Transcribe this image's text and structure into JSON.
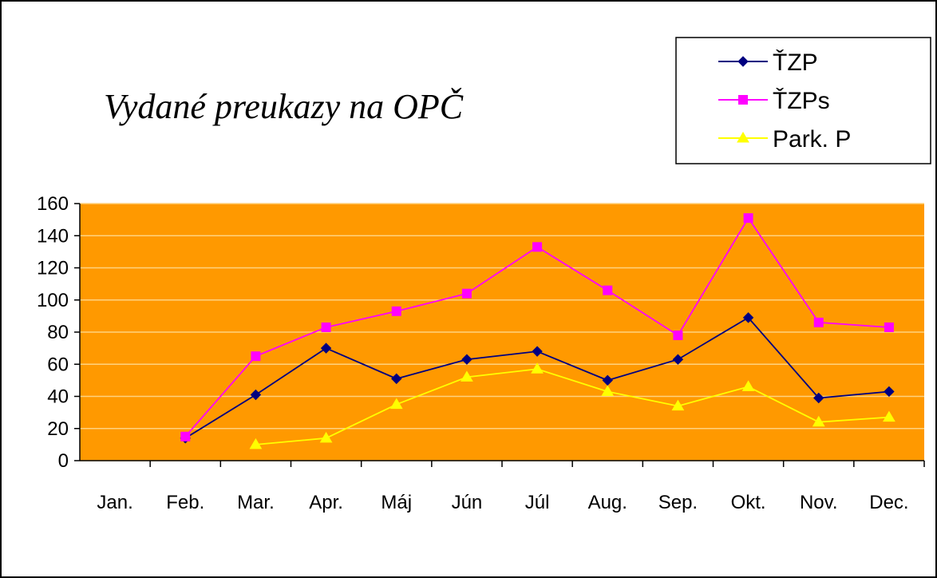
{
  "chart_data": {
    "type": "line",
    "title": "Vydané preukazy na OPČ",
    "categories": [
      "Jan.",
      "Feb.",
      "Mar.",
      "Apr.",
      "Máj",
      "Jún",
      "Júl",
      "Aug.",
      "Sep.",
      "Okt.",
      "Nov.",
      "Dec."
    ],
    "series": [
      {
        "name": "ŤZP",
        "color": "#000080",
        "marker": "diamond",
        "values": [
          null,
          14,
          41,
          70,
          51,
          63,
          68,
          50,
          63,
          89,
          39,
          43
        ]
      },
      {
        "name": "ŤZPs",
        "color": "#FF00FF",
        "marker": "square",
        "values": [
          null,
          15,
          65,
          83,
          93,
          104,
          133,
          106,
          78,
          151,
          86,
          83
        ]
      },
      {
        "name": "Park. P",
        "color": "#FFFF00",
        "marker": "triangle",
        "values": [
          null,
          null,
          10,
          14,
          35,
          52,
          57,
          43,
          34,
          46,
          24,
          27
        ]
      }
    ],
    "ylim": [
      0,
      160
    ],
    "yticks": [
      0,
      20,
      40,
      60,
      80,
      100,
      120,
      140,
      160
    ],
    "grid": true,
    "plot_background": "#FF9900",
    "legend": "top-right"
  }
}
